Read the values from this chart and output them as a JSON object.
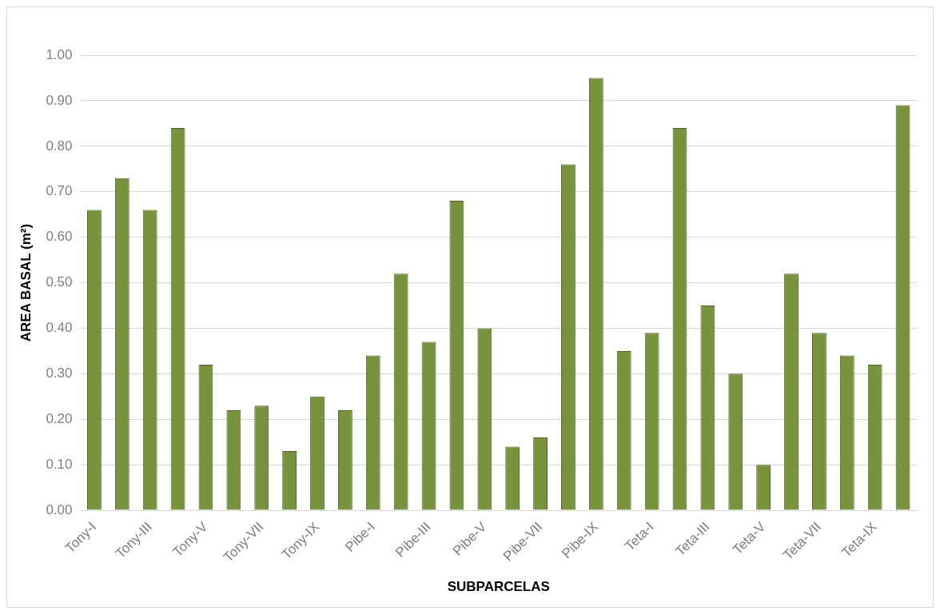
{
  "chart_data": {
    "type": "bar",
    "xlabel": "SUBPARCELAS",
    "ylabel": "AREA BASAL (m²)",
    "categories": [
      "Tony-I",
      null,
      "Tony-III",
      null,
      "Tony-V",
      null,
      "Tony-VII",
      null,
      "Tony-IX",
      null,
      "Pibe-I",
      null,
      "Pibe-III",
      null,
      "Pibe-V",
      null,
      "Pibe-VII",
      null,
      "Pibe-IX",
      null,
      "Teta-I",
      null,
      "Teta-III",
      null,
      "Teta-V",
      null,
      "Teta-VII",
      null,
      "Teta-IX",
      null
    ],
    "values": [
      0.66,
      0.73,
      0.66,
      0.84,
      0.32,
      0.22,
      0.23,
      0.13,
      0.25,
      0.22,
      0.34,
      0.52,
      0.37,
      0.68,
      0.4,
      0.14,
      0.16,
      0.76,
      0.95,
      0.35,
      0.39,
      0.84,
      0.45,
      0.3,
      0.1,
      0.52,
      0.39,
      0.34,
      0.32,
      0.89
    ],
    "color": "#77933c",
    "ylim": [
      0,
      1
    ],
    "yticks": [
      {
        "value": 0,
        "label": "0.00"
      },
      {
        "value": 0.1,
        "label": "0.10"
      },
      {
        "value": 0.2,
        "label": "0.20"
      },
      {
        "value": 0.3,
        "label": "0.30"
      },
      {
        "value": 0.4,
        "label": "0.40"
      },
      {
        "value": 0.5,
        "label": "0.50"
      },
      {
        "value": 0.6,
        "label": "0.60"
      },
      {
        "value": 0.7,
        "label": "0.70"
      },
      {
        "value": 0.8,
        "label": "0.80"
      },
      {
        "value": 0.9,
        "label": "0.90"
      },
      {
        "value": 1,
        "label": "1.00"
      }
    ],
    "grid": "y",
    "legend": false
  }
}
